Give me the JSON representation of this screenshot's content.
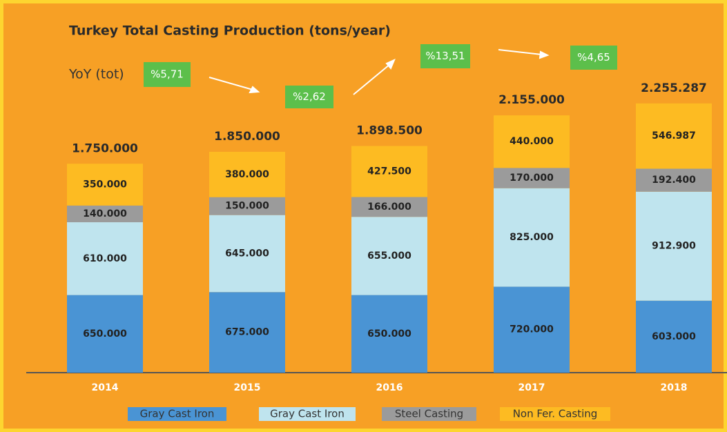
{
  "chart_data": {
    "type": "stacked_bar",
    "title": "Turkey Total Casting Production (tons/year)",
    "categories": [
      "2014",
      "2015",
      "2016",
      "2017",
      "2018"
    ],
    "series": [
      {
        "name": "Gray Cast Iron",
        "color": "#4a94d4",
        "values": [
          650000,
          675000,
          650000,
          720000,
          603000
        ],
        "value_labels": [
          "650.000",
          "675.000",
          "650.000",
          "720.000",
          "603.000"
        ]
      },
      {
        "name": "Gray Cast Iron",
        "color": "#bfe4ee",
        "values": [
          610000,
          645000,
          655000,
          825000,
          912900
        ],
        "value_labels": [
          "610.000",
          "645.000",
          "655.000",
          "825.000",
          "912.900"
        ]
      },
      {
        "name": "Steel Casting",
        "color": "#9b9b9b",
        "values": [
          140000,
          150000,
          166000,
          170000,
          192400
        ],
        "value_labels": [
          "140.000",
          "150.000",
          "166.000",
          "170.000",
          "192.400"
        ]
      },
      {
        "name": "Non Fer. Casting",
        "color": "#fdbb22",
        "values": [
          350000,
          380000,
          427500,
          440000,
          546987
        ],
        "value_labels": [
          "350.000",
          "380.000",
          "427.500",
          "440.000",
          "546.987"
        ]
      }
    ],
    "totals": [
      1750000,
      1850000,
      1898500,
      2155000,
      2255287
    ],
    "total_labels": [
      "1.750.000",
      "1.850.000",
      "1.898.500",
      "2.155.000",
      "2.255.287"
    ],
    "yoy_label": "YoY (tot)",
    "yoy": [
      "%5,71",
      "%2,62",
      "%13,51",
      "%4,65"
    ],
    "ylim": [
      0,
      3000000
    ]
  }
}
